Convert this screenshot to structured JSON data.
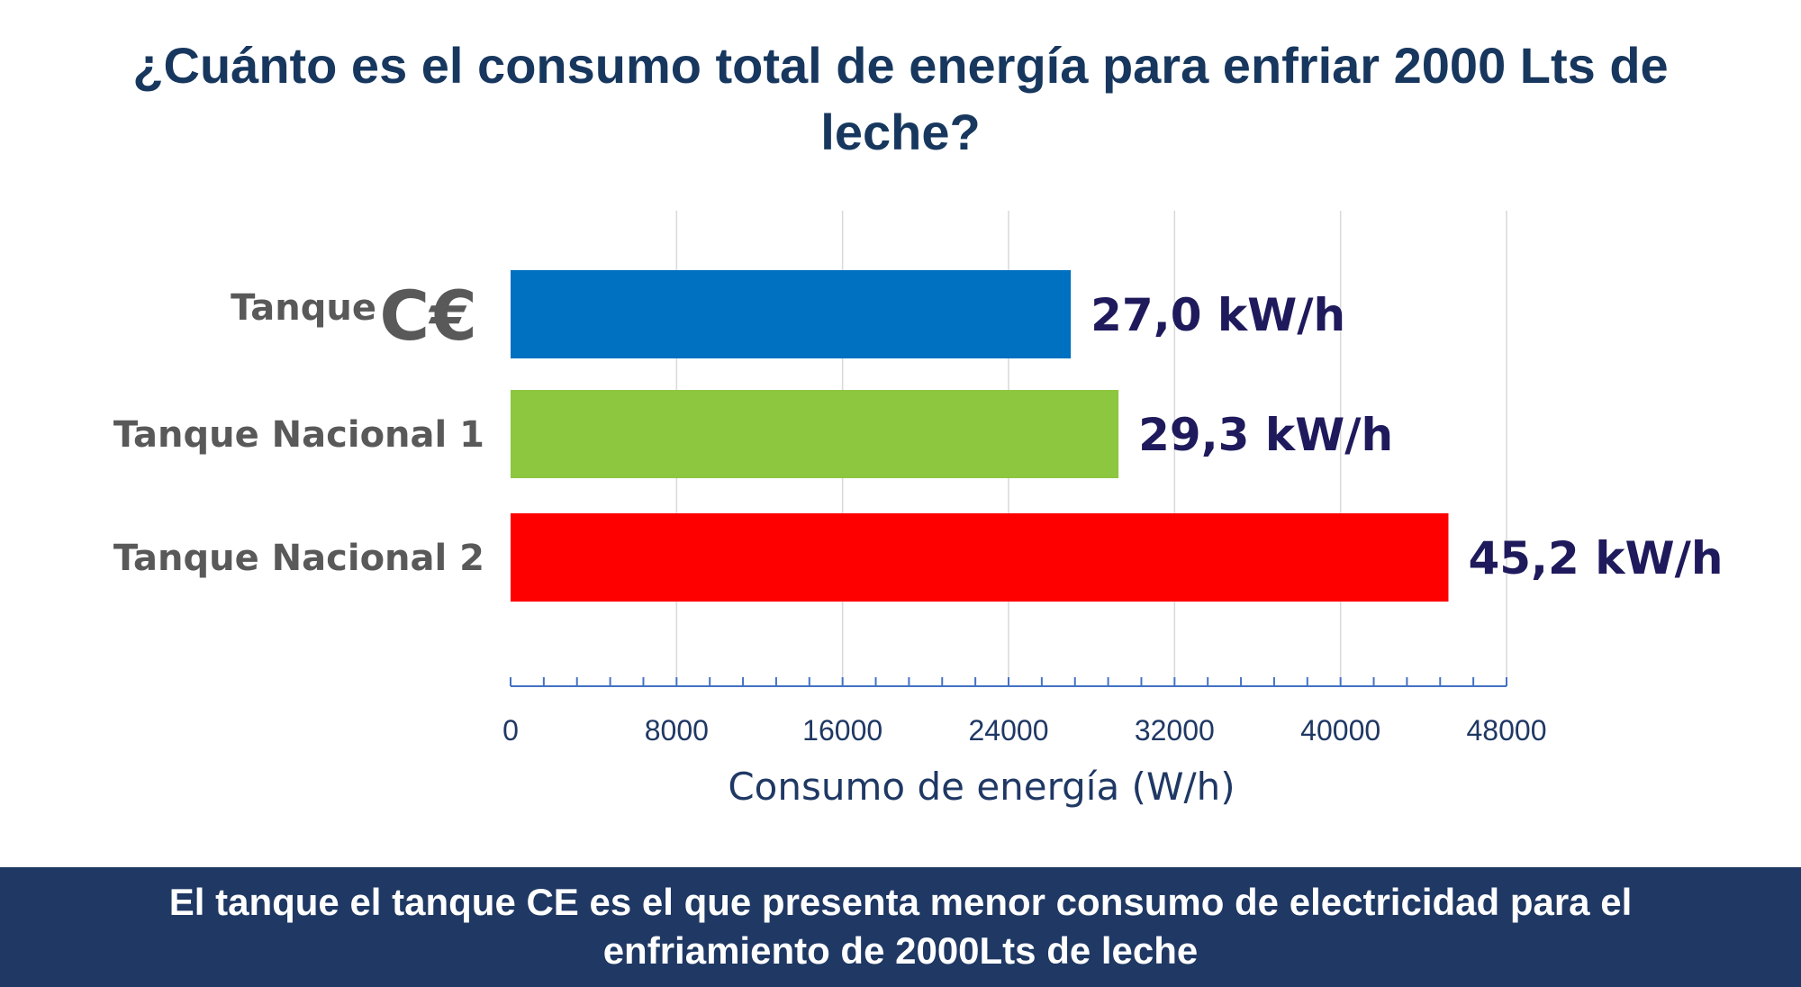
{
  "header": {
    "title": "¿Cuánto es el consumo total de energía para enfriar 2000 Lts de leche?"
  },
  "chart_data": {
    "type": "bar",
    "orientation": "horizontal",
    "categories": [
      {
        "label": "Tanque",
        "mark": "C€"
      },
      {
        "label": "Tanque Nacional 1"
      },
      {
        "label": "Tanque Nacional 2"
      }
    ],
    "values": [
      27000,
      29300,
      45200
    ],
    "data_labels": [
      "27,0 kW/h",
      "29,3 kW/h",
      "45,2 kW/h"
    ],
    "colors": [
      "#0070C0",
      "#8DC63F",
      "#FF0000"
    ],
    "xlabel": "Consumo de energía (W/h)",
    "ylabel": "",
    "xlim": [
      0,
      48000
    ],
    "xticks": [
      "0",
      "8000",
      "16000",
      "24000",
      "32000",
      "40000",
      "48000"
    ],
    "minor_tick_step": 1600,
    "grid": true,
    "legend": false
  },
  "footer": {
    "text": "El tanque el tanque CE es el que presenta menor consumo de electricidad para el enfriamiento de 2000Lts de leche"
  },
  "colors": {
    "title": "#17375E",
    "footer_bg": "#1F3864",
    "footer_text": "#FFFFFF",
    "category_text": "#595959",
    "data_label_text": "#1F1A5C",
    "axis_text": "#1F3864",
    "axis_line": "#4472C4",
    "grid": "#D9D9D9"
  }
}
